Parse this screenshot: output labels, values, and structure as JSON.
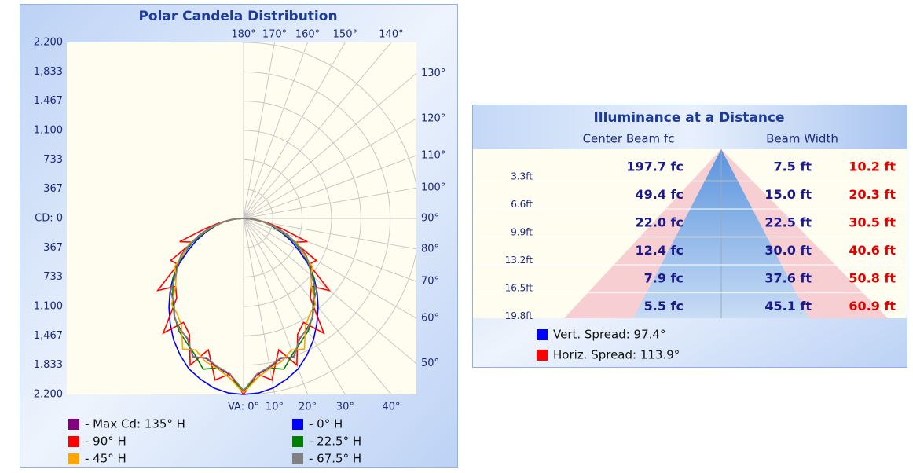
{
  "chart_data": {
    "type": "polar",
    "title": "Polar Candela Distribution",
    "rlim": [
      0,
      2200
    ],
    "rticks": [
      {
        "value": 2200,
        "label": "2.200"
      },
      {
        "value": 1833,
        "label": "1,833"
      },
      {
        "value": 1467,
        "label": "1.467"
      },
      {
        "value": 1100,
        "label": "1,100"
      },
      {
        "value": 733,
        "label": "733"
      },
      {
        "value": 367,
        "label": "367"
      },
      {
        "value": 0,
        "label": "CD: 0"
      },
      {
        "value": 367,
        "label": "367"
      },
      {
        "value": 733,
        "label": "733"
      },
      {
        "value": 1100,
        "label": "1.100"
      },
      {
        "value": 1467,
        "label": "1,467"
      },
      {
        "value": 1833,
        "label": "1.833"
      },
      {
        "value": 2200,
        "label": "2.200"
      }
    ],
    "angle_ticks": [
      {
        "value": 180,
        "label": "180°"
      },
      {
        "value": 170,
        "label": "170°"
      },
      {
        "value": 160,
        "label": "160°"
      },
      {
        "value": 150,
        "label": "150°"
      },
      {
        "value": 140,
        "label": "140°"
      },
      {
        "value": 130,
        "label": "130°"
      },
      {
        "value": 120,
        "label": "120°"
      },
      {
        "value": 110,
        "label": "110°"
      },
      {
        "value": 100,
        "label": "100°"
      },
      {
        "value": 90,
        "label": "90°"
      },
      {
        "value": 80,
        "label": "80°"
      },
      {
        "value": 70,
        "label": "70°"
      },
      {
        "value": 60,
        "label": "60°"
      },
      {
        "value": 50,
        "label": "50°"
      },
      {
        "value": 40,
        "label": "40°"
      },
      {
        "value": 30,
        "label": "30°"
      },
      {
        "value": 20,
        "label": "20°"
      },
      {
        "value": 10,
        "label": "10°"
      },
      {
        "value": 0,
        "label": "VA: 0°"
      }
    ],
    "angles": [
      0,
      5,
      10,
      15,
      20,
      25,
      30,
      35,
      40,
      45,
      50,
      55,
      60,
      65,
      70,
      75,
      80,
      85,
      90
    ],
    "series": [
      {
        "name": "- Max Cd: 135° H",
        "color": "#800080",
        "values": [
          2160,
          1960,
          1890,
          1810,
          1840,
          1660,
          1590,
          1510,
          1360,
          1290,
          1110,
          1010,
          890,
          730,
          570,
          420,
          280,
          140,
          0
        ]
      },
      {
        "name": "- 0° H",
        "color": "#0000ff",
        "values": [
          2200,
          2190,
          2150,
          2080,
          2000,
          1880,
          1750,
          1600,
          1450,
          1300,
          1150,
          980,
          800,
          650,
          500,
          370,
          250,
          120,
          0
        ]
      },
      {
        "name": "- 90° H",
        "color": "#ff0000",
        "values": [
          2200,
          1950,
          2050,
          1700,
          1950,
          1600,
          1500,
          1750,
          1300,
          1200,
          1400,
          1000,
          1050,
          700,
          850,
          500,
          300,
          150,
          0
        ]
      },
      {
        "name": "- 22.5° H",
        "color": "#008000",
        "values": [
          2150,
          2000,
          1900,
          1950,
          1800,
          1700,
          1620,
          1500,
          1380,
          1250,
          1150,
          1000,
          850,
          700,
          520,
          380,
          250,
          120,
          0
        ]
      },
      {
        "name": "- 45° H",
        "color": "#ffa500",
        "values": [
          2180,
          2000,
          1900,
          1850,
          1750,
          1800,
          1550,
          1450,
          1400,
          1200,
          1100,
          1050,
          850,
          750,
          550,
          400,
          260,
          130,
          0
        ]
      },
      {
        "name": "- 67.5° H",
        "color": "#808080",
        "values": [
          2150,
          1950,
          1880,
          1800,
          1850,
          1650,
          1600,
          1500,
          1350,
          1300,
          1100,
          1000,
          900,
          720,
          560,
          420,
          280,
          140,
          0
        ]
      }
    ]
  },
  "illuminance": {
    "title": "Illuminance at a Distance",
    "headers": [
      "Center Beam fc",
      "Beam Width"
    ],
    "rows": [
      [
        "3.3ft",
        "197.7 fc",
        "7.5 ft",
        "10.2 ft"
      ],
      [
        "6.6ft",
        "49.4 fc",
        "15.0 ft",
        "20.3 ft"
      ],
      [
        "9.9ft",
        "22.0 fc",
        "22.5 ft",
        "30.5 ft"
      ],
      [
        "13.2ft",
        "12.4 fc",
        "30.0 ft",
        "40.6 ft"
      ],
      [
        "16.5ft",
        "7.9 fc",
        "37.6 ft",
        "50.8 ft"
      ],
      [
        "19.8ft",
        "5.5 fc",
        "45.1 ft",
        "60.9 ft"
      ]
    ],
    "legend": [
      {
        "label": "Vert.  Spread: 97.4°",
        "color": "#0000ff"
      },
      {
        "label": "Horiz. Spread: 113.9°",
        "color": "#ff0000"
      }
    ]
  }
}
